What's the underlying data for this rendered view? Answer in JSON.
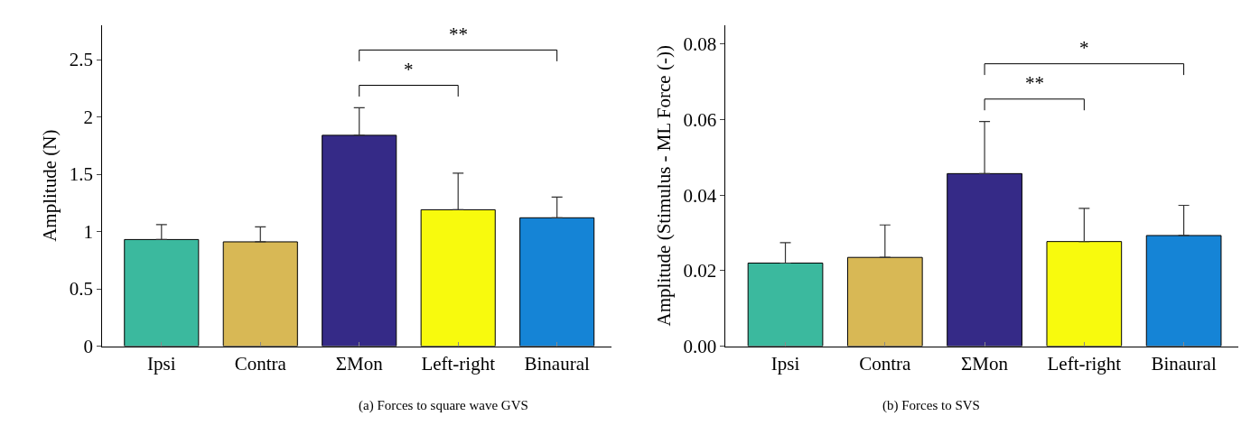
{
  "chart_data": [
    {
      "type": "bar",
      "title": "(a) Forces to square wave GVS",
      "ylabel": "Amplitude (N)",
      "categories": [
        "Ipsi",
        "Contra",
        "ΣMon",
        "Left-right",
        "Binaural"
      ],
      "values": [
        0.93,
        0.91,
        1.84,
        1.19,
        1.12
      ],
      "errors": [
        [
          0.93,
          1.06
        ],
        [
          0.91,
          1.04
        ],
        [
          1.84,
          2.08
        ],
        [
          1.19,
          1.51
        ],
        [
          1.12,
          1.3
        ]
      ],
      "colors": [
        "#3bb99e",
        "#d8b855",
        "#352a87",
        "#f8fa0d",
        "#1584d6"
      ],
      "ylim": [
        0,
        2.8
      ],
      "yticks": [
        0,
        0.5,
        1,
        1.5,
        2,
        2.5
      ],
      "annotations": [
        "*",
        "**"
      ]
    },
    {
      "type": "bar",
      "title": "(b) Forces to SVS",
      "ylabel": "Amplitude (Stimulus - ML Force (-))",
      "categories": [
        "Ipsi",
        "Contra",
        "ΣMon",
        "Left-right",
        "Binaural"
      ],
      "values": [
        0.022,
        0.0235,
        0.0457,
        0.0277,
        0.0293
      ],
      "errors": [
        [
          0.022,
          0.0274
        ],
        [
          0.0235,
          0.0321
        ],
        [
          0.0457,
          0.0595
        ],
        [
          0.0277,
          0.0365
        ],
        [
          0.0293,
          0.0373
        ]
      ],
      "colors": [
        "#3bb99e",
        "#d8b855",
        "#352a87",
        "#f8fa0d",
        "#1584d6"
      ],
      "ylim": [
        0,
        0.085
      ],
      "yticks": [
        {
          "value": 0,
          "label": "0.00"
        },
        {
          "value": 0.02,
          "label": "0.02"
        },
        {
          "value": 0.04,
          "label": "0.04"
        },
        {
          "value": 0.06,
          "label": "0.06"
        },
        {
          "value": 0.08,
          "label": "0.08"
        }
      ],
      "annotations": [
        "**",
        "*"
      ]
    }
  ]
}
